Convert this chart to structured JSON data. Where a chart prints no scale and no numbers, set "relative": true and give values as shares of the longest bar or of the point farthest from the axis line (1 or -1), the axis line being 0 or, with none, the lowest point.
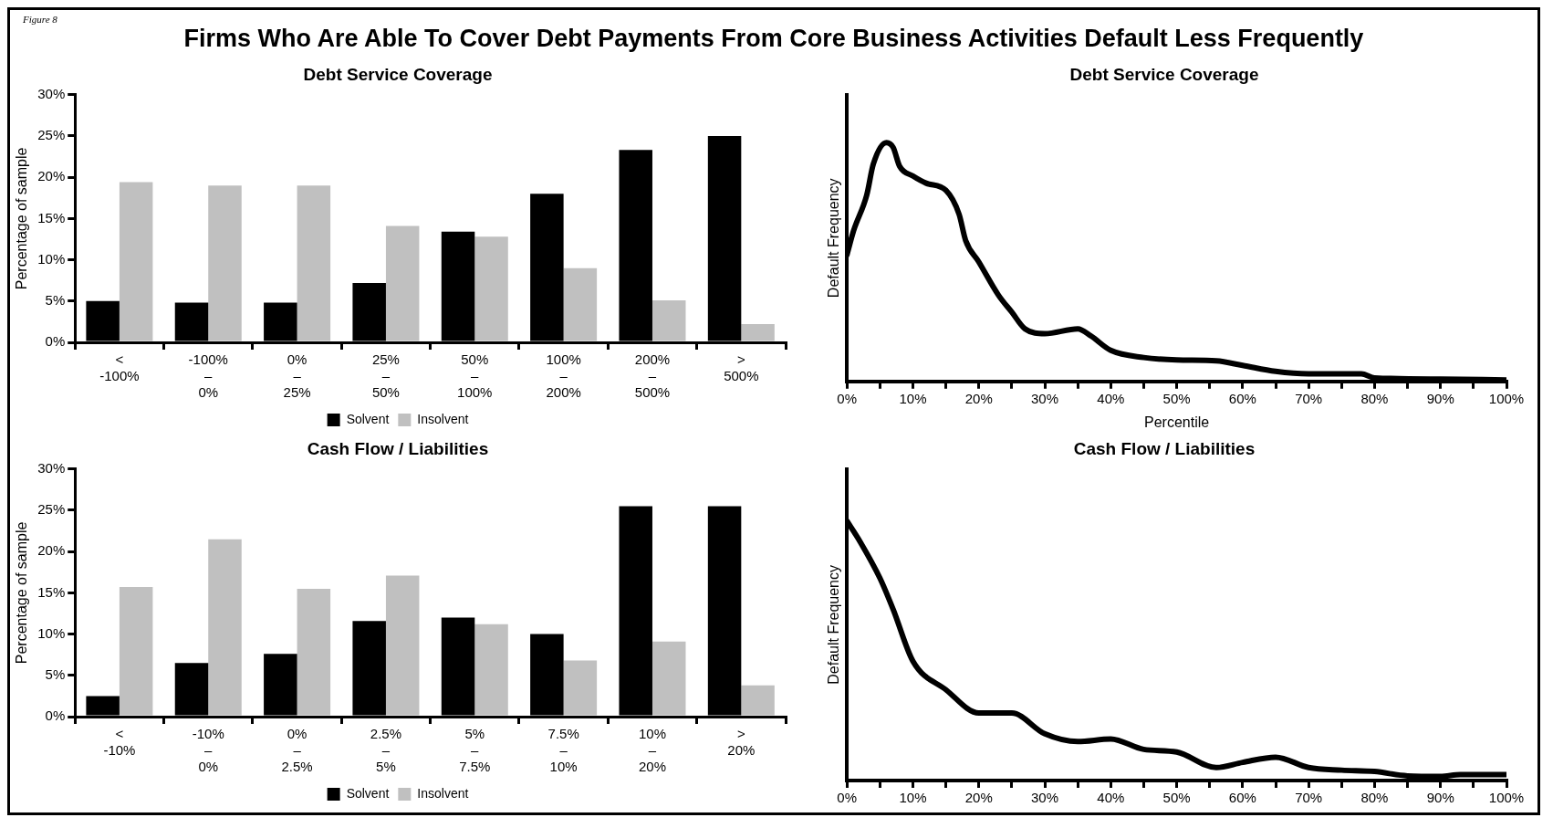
{
  "chart_data": [
    {
      "type": "other",
      "title": "Firms Who Are Able To Cover Debt Payments From Core Business Activities Default Less Frequently",
      "annotations": [
        "Figure 8"
      ]
    },
    {
      "type": "bar",
      "title": "Debt Service Coverage",
      "ylabel": "Percentage of sample",
      "categories": [
        "< -100%",
        "-100% – 0%",
        "0% – 25%",
        "25% – 50%",
        "50% – 100%",
        "100% – 200%",
        "200% – 500%",
        "> 500%"
      ],
      "series": [
        {
          "name": "Solvent",
          "color": "#000000",
          "values": [
            5,
            4.8,
            4.8,
            7.2,
            13.4,
            18,
            23.3,
            25
          ]
        },
        {
          "name": "Insolvent",
          "color": "#c0c0c0",
          "values": [
            19.4,
            19,
            19,
            14.1,
            12.8,
            9,
            5.1,
            2.2
          ]
        }
      ],
      "ylim": [
        0,
        30
      ],
      "yticks": [
        {
          "value": 0,
          "label": "0%"
        },
        {
          "value": 5,
          "label": "5%"
        },
        {
          "value": 10,
          "label": "10%"
        },
        {
          "value": 15,
          "label": "15%"
        },
        {
          "value": 20,
          "label": "20%"
        },
        {
          "value": 25,
          "label": "25%"
        },
        {
          "value": 30,
          "label": "30%"
        }
      ],
      "legend": "bottom"
    },
    {
      "type": "line",
      "title": "Debt Service Coverage",
      "xlabel": "Percentile",
      "ylabel": "Default Frequency",
      "relative": true,
      "series": [
        {
          "color": "#000000",
          "x": [
            0,
            1,
            3,
            4,
            6,
            7,
            8,
            10,
            12,
            15,
            17,
            18,
            20,
            23,
            25,
            27,
            30,
            35,
            37,
            40,
            45,
            50,
            56,
            60,
            65,
            70,
            78,
            80,
            90,
            100
          ],
          "values": [
            0.53,
            0.63,
            0.78,
            0.91,
            1,
            0.98,
            0.9,
            0.86,
            0.83,
            0.8,
            0.7,
            0.59,
            0.5,
            0.36,
            0.29,
            0.22,
            0.2,
            0.22,
            0.19,
            0.13,
            0.1,
            0.09,
            0.086,
            0.067,
            0.042,
            0.032,
            0.032,
            0.015,
            0.01,
            0.006
          ]
        }
      ],
      "xlim": [
        0,
        100
      ],
      "xticks": [
        {
          "value": 0,
          "label": "0%"
        },
        {
          "value": 5,
          "label": null
        },
        {
          "value": 10,
          "label": "10%"
        },
        {
          "value": 15,
          "label": null
        },
        {
          "value": 20,
          "label": "20%"
        },
        {
          "value": 25,
          "label": null
        },
        {
          "value": 30,
          "label": "30%"
        },
        {
          "value": 35,
          "label": null
        },
        {
          "value": 40,
          "label": "40%"
        },
        {
          "value": 45,
          "label": null
        },
        {
          "value": 50,
          "label": "50%"
        },
        {
          "value": 55,
          "label": null
        },
        {
          "value": 60,
          "label": "60%"
        },
        {
          "value": 65,
          "label": null
        },
        {
          "value": 70,
          "label": "70%"
        },
        {
          "value": 75,
          "label": null
        },
        {
          "value": 80,
          "label": "80%"
        },
        {
          "value": 85,
          "label": null
        },
        {
          "value": 90,
          "label": "90%"
        },
        {
          "value": 95,
          "label": null
        },
        {
          "value": 100,
          "label": "100%"
        }
      ]
    },
    {
      "type": "bar",
      "title": "Cash Flow / Liabilities",
      "ylabel": "Percentage of sample",
      "categories": [
        "< -10%",
        "-10% – 0%",
        "0% – 2.5%",
        "2.5% – 5%",
        "5% – 7.5%",
        "7.5% – 10%",
        "10% – 20%",
        "> 20%"
      ],
      "series": [
        {
          "name": "Solvent",
          "color": "#000000",
          "values": [
            2.5,
            6.5,
            7.6,
            11.6,
            12,
            10,
            25.5,
            25.5
          ]
        },
        {
          "name": "Insolvent",
          "color": "#c0c0c0",
          "values": [
            15.7,
            21.5,
            15.5,
            17.1,
            11.2,
            6.8,
            9.1,
            3.8
          ]
        }
      ],
      "ylim": [
        0,
        30
      ],
      "yticks": [
        {
          "value": 0,
          "label": "0%"
        },
        {
          "value": 5,
          "label": "5%"
        },
        {
          "value": 10,
          "label": "10%"
        },
        {
          "value": 15,
          "label": "15%"
        },
        {
          "value": 20,
          "label": "20%"
        },
        {
          "value": 25,
          "label": "25%"
        },
        {
          "value": 30,
          "label": "30%"
        }
      ],
      "legend": "bottom"
    },
    {
      "type": "line",
      "title": "Cash Flow / Liabilities",
      "ylabel": "Default Frequency",
      "relative": true,
      "series": [
        {
          "color": "#000000",
          "x": [
            0,
            2,
            5,
            7,
            10,
            15,
            20,
            25,
            30,
            35,
            40,
            45,
            50,
            56,
            60,
            65,
            70,
            75,
            80,
            85,
            90,
            93,
            100
          ],
          "values": [
            1,
            0.92,
            0.78,
            0.66,
            0.46,
            0.35,
            0.26,
            0.26,
            0.18,
            0.15,
            0.16,
            0.12,
            0.11,
            0.05,
            0.07,
            0.09,
            0.05,
            0.04,
            0.035,
            0.018,
            0.016,
            0.023,
            0.023
          ]
        }
      ],
      "xlim": [
        0,
        100
      ],
      "xticks": [
        {
          "value": 0,
          "label": "0%"
        },
        {
          "value": 5,
          "label": null
        },
        {
          "value": 10,
          "label": "10%"
        },
        {
          "value": 15,
          "label": null
        },
        {
          "value": 20,
          "label": "20%"
        },
        {
          "value": 25,
          "label": null
        },
        {
          "value": 30,
          "label": "30%"
        },
        {
          "value": 35,
          "label": null
        },
        {
          "value": 40,
          "label": "40%"
        },
        {
          "value": 45,
          "label": null
        },
        {
          "value": 50,
          "label": "50%"
        },
        {
          "value": 55,
          "label": null
        },
        {
          "value": 60,
          "label": "60%"
        },
        {
          "value": 65,
          "label": null
        },
        {
          "value": 70,
          "label": "70%"
        },
        {
          "value": 75,
          "label": null
        },
        {
          "value": 80,
          "label": "80%"
        },
        {
          "value": 85,
          "label": null
        },
        {
          "value": 90,
          "label": "90%"
        },
        {
          "value": 95,
          "label": null
        },
        {
          "value": 100,
          "label": "100%"
        }
      ]
    }
  ]
}
